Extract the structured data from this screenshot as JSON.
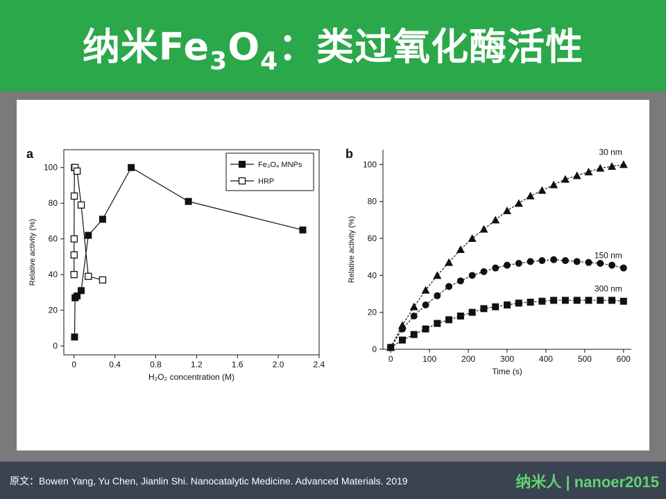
{
  "slide": {
    "title_prefix": "纳米Fe",
    "title_sub1": "3",
    "title_mid": "O",
    "title_sub2": "4",
    "title_suffix": "：类过氧化酶活性",
    "citation": "原文：Bowen Yang, Yu Chen, Jianlin Shi. Nanocatalytic Medicine. Advanced Materials. 2019",
    "brand": "纳米人 | nanoer2015",
    "colors": {
      "header": "#2aa84a",
      "footer": "#3a4351",
      "brand": "#5fd46e",
      "background": "#7a7a7a"
    }
  },
  "chart_data": [
    {
      "panel_label": "a",
      "type": "line",
      "xlabel": "H₂O₂ concentration (M)",
      "ylabel": "Relative activity (%)",
      "xlim": [
        -0.1,
        2.4
      ],
      "ylim": [
        -5,
        110
      ],
      "xticks": [
        0,
        0.4,
        0.8,
        1.2,
        1.6,
        2.0,
        2.4
      ],
      "xtick_labels": [
        "0",
        "0.4",
        "0.8",
        "1.2",
        "1.6",
        "2.0",
        "2.4"
      ],
      "yticks": [
        0,
        20,
        40,
        60,
        80,
        100
      ],
      "legend_position": "top-right",
      "series": [
        {
          "name": "Fe₃O₄ MNPs",
          "marker": "filled-square",
          "x": [
            0.005,
            0.01,
            0.03,
            0.07,
            0.14,
            0.28,
            0.56,
            1.12,
            2.24
          ],
          "y": [
            5,
            27,
            28,
            31,
            62,
            71,
            100,
            81,
            65
          ]
        },
        {
          "name": "HRP",
          "marker": "open-square",
          "x": [
            0.0,
            0.0005,
            0.001,
            0.002,
            0.005,
            0.01,
            0.03,
            0.07,
            0.14,
            0.28
          ],
          "y": [
            40,
            51,
            60,
            84,
            100,
            100,
            98,
            79,
            39,
            37
          ]
        }
      ]
    },
    {
      "panel_label": "b",
      "type": "line",
      "xlabel": "Time (s)",
      "ylabel": "Relative activity (%)",
      "xlim": [
        -20,
        620
      ],
      "ylim": [
        0,
        108
      ],
      "xticks": [
        0,
        100,
        200,
        300,
        400,
        500,
        600
      ],
      "yticks": [
        0,
        20,
        40,
        60,
        80,
        100
      ],
      "series": [
        {
          "name": "30 nm",
          "marker": "filled-triangle",
          "x": [
            0,
            30,
            60,
            90,
            120,
            150,
            180,
            210,
            240,
            270,
            300,
            330,
            360,
            390,
            420,
            450,
            480,
            510,
            540,
            570,
            600
          ],
          "y": [
            1,
            13,
            23,
            32,
            40,
            47,
            54,
            60,
            65,
            70,
            75,
            79,
            83,
            86,
            89,
            92,
            94,
            96,
            98,
            99,
            100
          ]
        },
        {
          "name": "150 nm",
          "marker": "filled-circle",
          "x": [
            0,
            30,
            60,
            90,
            120,
            150,
            180,
            210,
            240,
            270,
            300,
            330,
            360,
            390,
            420,
            450,
            480,
            510,
            540,
            570,
            600
          ],
          "y": [
            1,
            11,
            18,
            24,
            29,
            34,
            37,
            40,
            42,
            44,
            45.5,
            46.5,
            47.5,
            48,
            48.5,
            48,
            47.5,
            47,
            46.5,
            45.5,
            44
          ]
        },
        {
          "name": "300 nm",
          "marker": "filled-square",
          "x": [
            0,
            30,
            60,
            90,
            120,
            150,
            180,
            210,
            240,
            270,
            300,
            330,
            360,
            390,
            420,
            450,
            480,
            510,
            540,
            570,
            600
          ],
          "y": [
            1,
            5,
            8,
            11,
            14,
            16,
            18,
            20,
            22,
            23,
            24,
            25,
            25.5,
            26,
            26.5,
            26.5,
            26.5,
            26.5,
            26.5,
            26.5,
            26
          ]
        }
      ]
    }
  ]
}
